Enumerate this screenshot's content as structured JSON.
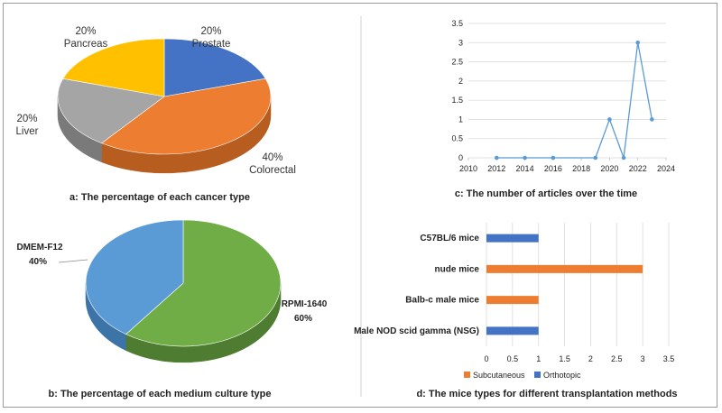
{
  "chart_data": [
    {
      "id": "a",
      "type": "pie",
      "caption": "a: The percentage of each cancer type",
      "slices": [
        {
          "name": "Prostate",
          "value": 20,
          "label": "20%",
          "color": "#4472c4",
          "side": "#2f528f"
        },
        {
          "name": "Colorectal",
          "value": 40,
          "label": "40%",
          "color": "#ed7d31",
          "side": "#b65d1f"
        },
        {
          "name": "Liver",
          "value": 20,
          "label": "20%",
          "color": "#a5a5a5",
          "side": "#7a7a7a"
        },
        {
          "name": "Pancreas",
          "value": 20,
          "label": "20%",
          "color": "#ffc000",
          "side": "#c79500"
        }
      ]
    },
    {
      "id": "b",
      "type": "pie",
      "caption": "b: The percentage of each medium culture type",
      "slices": [
        {
          "name": "RPMI-1640",
          "value": 60,
          "label": "60%",
          "color": "#70ad47",
          "side": "#4e7d31"
        },
        {
          "name": "DMEM-F12",
          "value": 40,
          "label": "40%",
          "color": "#5b9bd5",
          "side": "#3d74a8"
        }
      ]
    },
    {
      "id": "c",
      "type": "line",
      "caption": "c: The number of articles over the time",
      "x": [
        2012,
        2014,
        2016,
        2019,
        2020,
        2021,
        2022,
        2023
      ],
      "y": [
        0,
        0,
        0,
        0,
        1,
        0,
        3,
        1
      ],
      "xticks": [
        "2010",
        "2012",
        "2014",
        "2016",
        "2018",
        "2020",
        "2022",
        "2024"
      ],
      "yticks": [
        "0",
        "0.5",
        "1",
        "1.5",
        "2",
        "2.5",
        "3",
        "3.5"
      ],
      "xlim": [
        2010,
        2024
      ],
      "ylim": [
        0,
        3.5
      ],
      "color": "#5b9bd5",
      "grid": true
    },
    {
      "id": "d",
      "type": "bar",
      "orientation": "horizontal",
      "caption": "d: The mice types for different transplantation methods",
      "categories": [
        "C57BL/6 mice",
        "nude mice",
        "Balb-c male mice",
        "Male NOD scid gamma (NSG)"
      ],
      "series": [
        {
          "name": "Subcutaneous",
          "color": "#ed7d31",
          "values": [
            0,
            3,
            1,
            0
          ]
        },
        {
          "name": "Orthotopic",
          "color": "#4472c4",
          "values": [
            1,
            0,
            0,
            1
          ]
        }
      ],
      "xticks": [
        "0",
        "0.5",
        "1",
        "1.5",
        "2",
        "2.5",
        "3",
        "3.5"
      ],
      "xlim": [
        0,
        3.5
      ],
      "grid": true
    }
  ]
}
